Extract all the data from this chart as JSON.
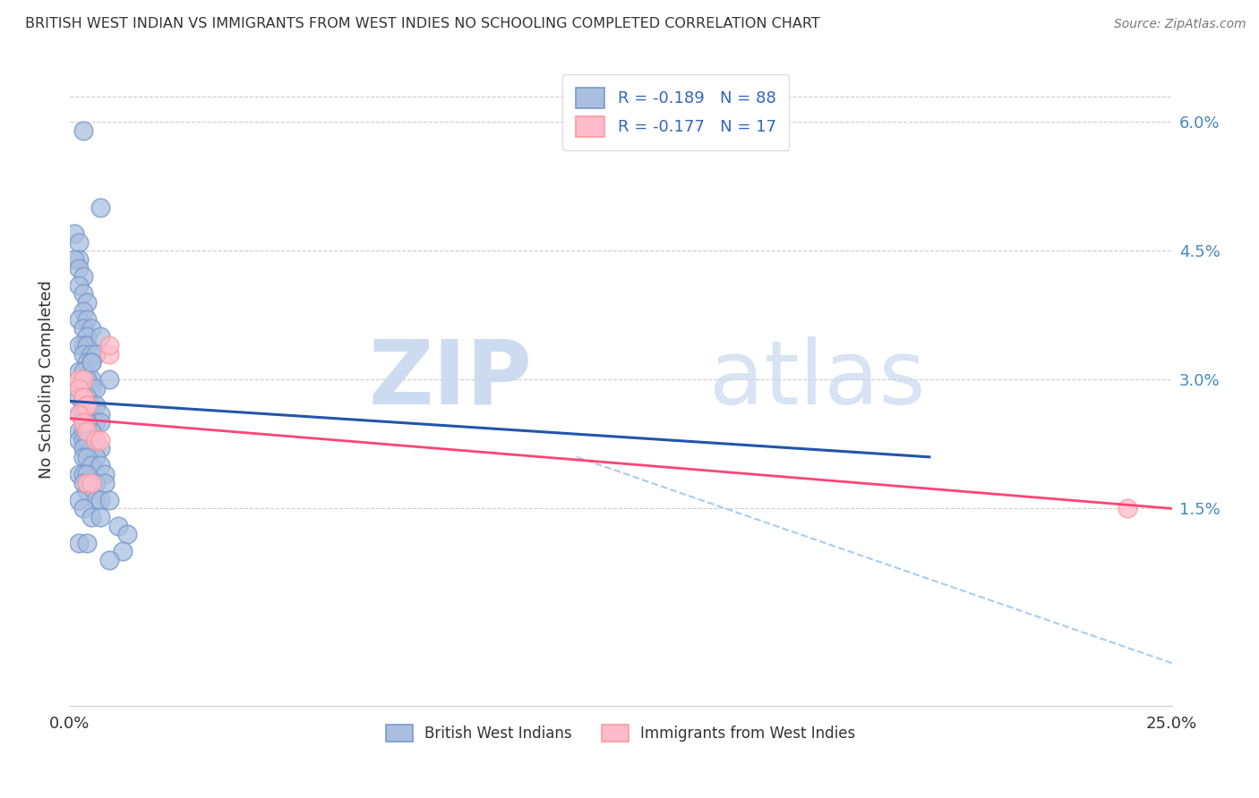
{
  "title": "BRITISH WEST INDIAN VS IMMIGRANTS FROM WEST INDIES NO SCHOOLING COMPLETED CORRELATION CHART",
  "source": "Source: ZipAtlas.com",
  "ylabel": "No Schooling Completed",
  "yticks": [
    "6.0%",
    "4.5%",
    "3.0%",
    "1.5%"
  ],
  "ytick_vals": [
    0.06,
    0.045,
    0.03,
    0.015
  ],
  "xrange": [
    0.0,
    0.25
  ],
  "yrange": [
    -0.008,
    0.068
  ],
  "legend1_label": "R = -0.189   N = 88",
  "legend2_label": "R = -0.177   N = 17",
  "blue_scatter_x": [
    0.003,
    0.007,
    0.001,
    0.002,
    0.002,
    0.001,
    0.002,
    0.003,
    0.002,
    0.003,
    0.004,
    0.003,
    0.002,
    0.004,
    0.003,
    0.005,
    0.004,
    0.003,
    0.002,
    0.004,
    0.003,
    0.005,
    0.004,
    0.006,
    0.005,
    0.007,
    0.002,
    0.003,
    0.004,
    0.005,
    0.003,
    0.004,
    0.002,
    0.003,
    0.005,
    0.006,
    0.002,
    0.003,
    0.004,
    0.005,
    0.003,
    0.006,
    0.007,
    0.009,
    0.002,
    0.003,
    0.004,
    0.006,
    0.007,
    0.002,
    0.003,
    0.004,
    0.005,
    0.006,
    0.002,
    0.003,
    0.004,
    0.005,
    0.007,
    0.003,
    0.004,
    0.005,
    0.006,
    0.003,
    0.004,
    0.005,
    0.007,
    0.008,
    0.002,
    0.003,
    0.004,
    0.006,
    0.008,
    0.003,
    0.004,
    0.006,
    0.007,
    0.009,
    0.002,
    0.003,
    0.005,
    0.007,
    0.011,
    0.013,
    0.002,
    0.004,
    0.012,
    0.009
  ],
  "blue_scatter_y": [
    0.059,
    0.05,
    0.047,
    0.046,
    0.044,
    0.044,
    0.043,
    0.042,
    0.041,
    0.04,
    0.039,
    0.038,
    0.037,
    0.037,
    0.036,
    0.036,
    0.035,
    0.034,
    0.034,
    0.034,
    0.033,
    0.033,
    0.032,
    0.033,
    0.032,
    0.035,
    0.031,
    0.031,
    0.03,
    0.03,
    0.03,
    0.03,
    0.029,
    0.029,
    0.029,
    0.029,
    0.028,
    0.028,
    0.028,
    0.027,
    0.027,
    0.027,
    0.026,
    0.03,
    0.026,
    0.026,
    0.025,
    0.025,
    0.025,
    0.024,
    0.024,
    0.024,
    0.024,
    0.023,
    0.023,
    0.023,
    0.023,
    0.022,
    0.022,
    0.022,
    0.025,
    0.032,
    0.021,
    0.021,
    0.021,
    0.02,
    0.02,
    0.019,
    0.019,
    0.019,
    0.019,
    0.018,
    0.018,
    0.018,
    0.017,
    0.016,
    0.016,
    0.016,
    0.016,
    0.015,
    0.014,
    0.014,
    0.013,
    0.012,
    0.011,
    0.011,
    0.01,
    0.009
  ],
  "pink_scatter_x": [
    0.002,
    0.003,
    0.002,
    0.003,
    0.003,
    0.004,
    0.004,
    0.002,
    0.003,
    0.004,
    0.006,
    0.007,
    0.004,
    0.005,
    0.009,
    0.009,
    0.24
  ],
  "pink_scatter_y": [
    0.03,
    0.03,
    0.029,
    0.028,
    0.028,
    0.027,
    0.027,
    0.026,
    0.025,
    0.024,
    0.023,
    0.023,
    0.018,
    0.018,
    0.033,
    0.034,
    0.015
  ],
  "blue_trend_x": [
    0.0,
    0.195
  ],
  "blue_trend_y": [
    0.0275,
    0.021
  ],
  "pink_trend_x": [
    0.0,
    0.25
  ],
  "pink_trend_y": [
    0.0255,
    0.015
  ],
  "dashed_trend_x": [
    0.115,
    0.25
  ],
  "dashed_trend_y": [
    0.021,
    -0.003
  ],
  "bottom_legend": [
    "British West Indians",
    "Immigrants from West Indies"
  ]
}
